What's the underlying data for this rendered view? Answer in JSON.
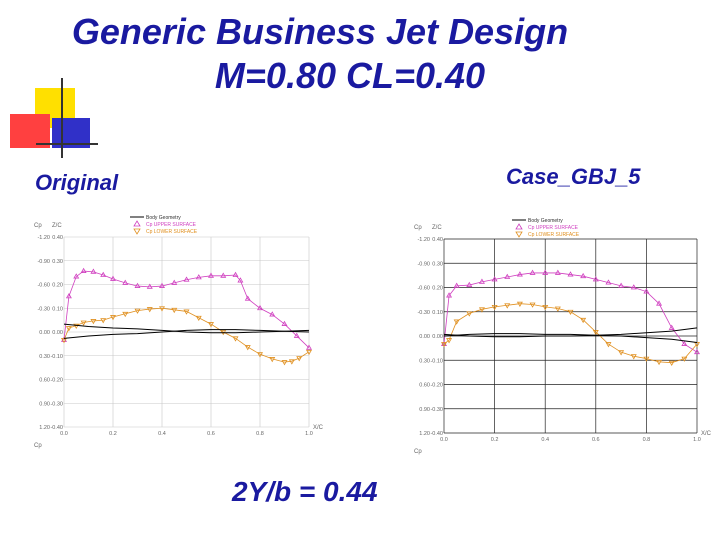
{
  "title": "Generic Business Jet Design",
  "subtitle": "M=0.80  CL=0.40",
  "left_label": "Original",
  "right_label": "Case_GBJ_5",
  "footer": "2Y/b = 0.44",
  "colors": {
    "title": "#1a1aa0",
    "deco_yellow": "#ffe000",
    "deco_red": "#ff2020",
    "deco_blue": "#2020d0",
    "upper": "#d040c0",
    "lower": "#e09020",
    "body": "#000000"
  },
  "chart_data": [
    {
      "type": "line",
      "name": "original",
      "ylabel": "Cp",
      "y_tick_labels": [
        "-1.20",
        "-0.90",
        "-0.60",
        "-0.30",
        "0.00",
        "0.30",
        "0.60",
        "0.90",
        "1.20"
      ],
      "zc_tick_labels": [
        "0.40",
        "0.30",
        "0.20",
        "0.10",
        "0.00",
        "-0.10",
        "-0.20",
        "-0.30",
        "-0.40"
      ],
      "x_tick_labels": [
        "0.0",
        "0.2",
        "0.4",
        "0.6",
        "0.8",
        "1.0"
      ],
      "xlabel": "X/C",
      "zc_label": "Z/C",
      "legend": [
        "Body Geometry",
        "Cp UPPER SURFACE",
        "Cp LOWER SURFACE"
      ],
      "legend_placement": "top-center",
      "grid": true,
      "ylim": [
        -1.2,
        1.2
      ],
      "xlim": [
        0,
        1
      ],
      "series": [
        {
          "name": "Cp UPPER SURFACE",
          "x": [
            0.0,
            0.02,
            0.05,
            0.08,
            0.12,
            0.16,
            0.2,
            0.25,
            0.3,
            0.35,
            0.4,
            0.45,
            0.5,
            0.55,
            0.6,
            0.65,
            0.7,
            0.72,
            0.75,
            0.8,
            0.85,
            0.9,
            0.95,
            1.0
          ],
          "y": [
            0.1,
            -0.45,
            -0.7,
            -0.77,
            -0.76,
            -0.72,
            -0.67,
            -0.62,
            -0.58,
            -0.57,
            -0.58,
            -0.62,
            -0.66,
            -0.69,
            -0.71,
            -0.71,
            -0.72,
            -0.65,
            -0.42,
            -0.3,
            -0.22,
            -0.1,
            0.05,
            0.2
          ]
        },
        {
          "name": "Cp LOWER SURFACE",
          "x": [
            0.0,
            0.02,
            0.05,
            0.08,
            0.12,
            0.16,
            0.2,
            0.25,
            0.3,
            0.35,
            0.4,
            0.45,
            0.5,
            0.55,
            0.6,
            0.65,
            0.7,
            0.75,
            0.8,
            0.85,
            0.9,
            0.93,
            0.96,
            1.0
          ],
          "y": [
            0.1,
            -0.05,
            -0.08,
            -0.12,
            -0.14,
            -0.15,
            -0.19,
            -0.23,
            -0.27,
            -0.29,
            -0.3,
            -0.28,
            -0.26,
            -0.18,
            -0.1,
            0.0,
            0.08,
            0.19,
            0.28,
            0.34,
            0.38,
            0.37,
            0.33,
            0.25
          ]
        },
        {
          "name": "Body Geometry",
          "x": [
            0.0,
            0.1,
            0.2,
            0.3,
            0.4,
            0.5,
            0.6,
            0.7,
            0.8,
            0.9,
            1.0
          ],
          "y": [
            0.08,
            0.05,
            0.03,
            0.02,
            0.0,
            -0.02,
            -0.03,
            -0.03,
            -0.02,
            -0.01,
            0.0
          ]
        }
      ]
    },
    {
      "type": "line",
      "name": "case_gbj_5",
      "ylabel": "Cp",
      "y_tick_labels": [
        "-1.20",
        "-0.90",
        "-0.60",
        "-0.30",
        "0.00",
        "0.30",
        "0.60",
        "0.90",
        "1.20"
      ],
      "zc_tick_labels": [
        "0.40",
        "0.30",
        "0.20",
        "0.10",
        "0.00",
        "-0.10",
        "-0.20",
        "-0.30",
        "-0.40"
      ],
      "x_tick_labels": [
        "0.0",
        "0.2",
        "0.4",
        "0.6",
        "0.8",
        "1.0"
      ],
      "xlabel": "X/C",
      "zc_label": "Z/C",
      "legend": [
        "Body Geometry",
        "Cp UPPER SURFACE",
        "Cp LOWER SURFACE"
      ],
      "legend_placement": "top-right",
      "grid": true,
      "ylim": [
        -1.2,
        1.2
      ],
      "xlim": [
        0,
        1
      ],
      "series": [
        {
          "name": "Cp UPPER SURFACE",
          "x": [
            0.0,
            0.02,
            0.05,
            0.1,
            0.15,
            0.2,
            0.25,
            0.3,
            0.35,
            0.4,
            0.45,
            0.5,
            0.55,
            0.6,
            0.65,
            0.7,
            0.75,
            0.8,
            0.85,
            0.9,
            0.95,
            1.0
          ],
          "y": [
            0.1,
            -0.5,
            -0.62,
            -0.63,
            -0.67,
            -0.7,
            -0.73,
            -0.76,
            -0.78,
            -0.78,
            -0.78,
            -0.76,
            -0.74,
            -0.7,
            -0.66,
            -0.62,
            -0.6,
            -0.55,
            -0.4,
            -0.1,
            0.1,
            0.2
          ]
        },
        {
          "name": "Cp LOWER SURFACE",
          "x": [
            0.0,
            0.02,
            0.05,
            0.1,
            0.15,
            0.2,
            0.25,
            0.3,
            0.35,
            0.4,
            0.45,
            0.5,
            0.55,
            0.6,
            0.65,
            0.7,
            0.75,
            0.8,
            0.85,
            0.9,
            0.95,
            1.0
          ],
          "y": [
            0.1,
            0.05,
            -0.18,
            -0.28,
            -0.33,
            -0.36,
            -0.38,
            -0.4,
            -0.39,
            -0.36,
            -0.34,
            -0.3,
            -0.2,
            -0.05,
            0.1,
            0.2,
            0.25,
            0.28,
            0.32,
            0.33,
            0.28,
            0.1
          ]
        },
        {
          "name": "Body Geometry",
          "x": [
            0.0,
            0.1,
            0.2,
            0.3,
            0.4,
            0.5,
            0.6,
            0.7,
            0.8,
            0.9,
            1.0
          ],
          "y": [
            0.0,
            -0.02,
            -0.03,
            -0.03,
            -0.02,
            -0.02,
            -0.01,
            0.0,
            0.02,
            0.04,
            0.08
          ]
        }
      ]
    }
  ]
}
